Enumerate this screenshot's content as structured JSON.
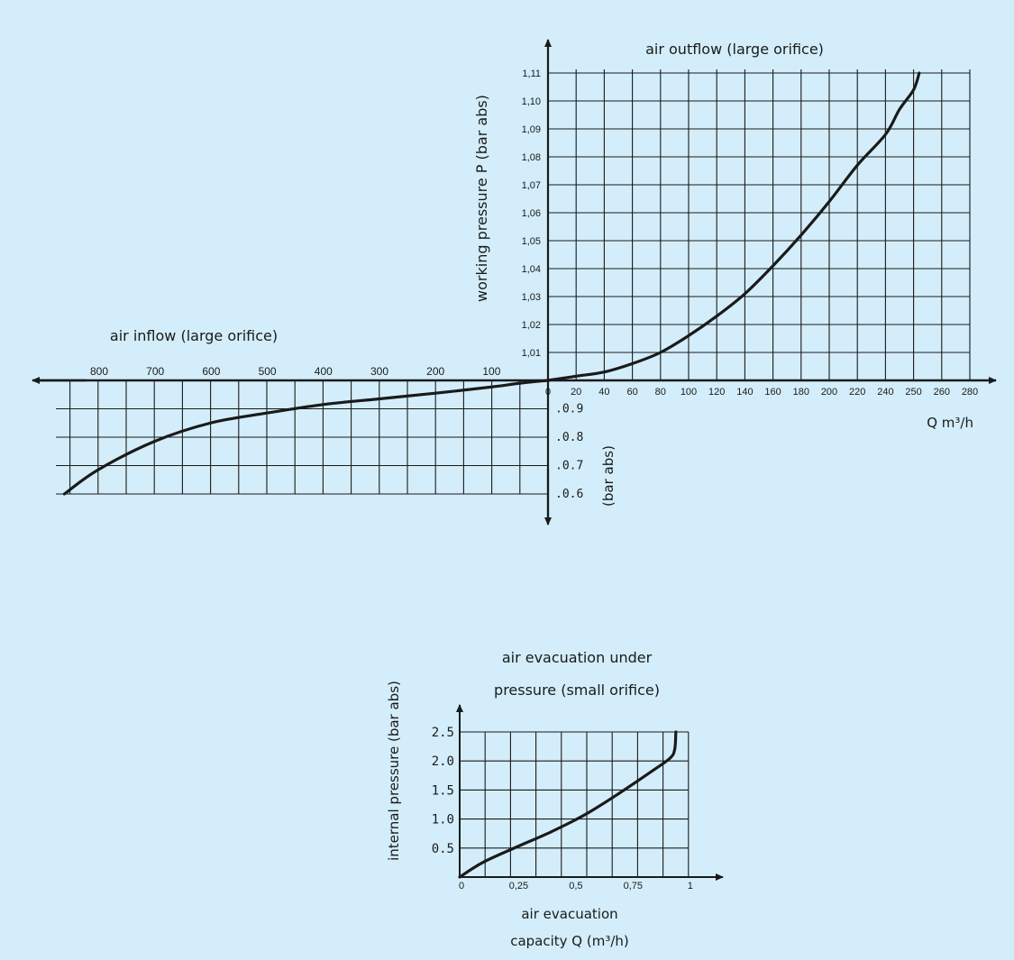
{
  "chart_data": [
    {
      "type": "line",
      "title": "air outflow (large orifice)",
      "ylabel": "working pressure P (bar abs)",
      "xlabel": "Q m³/h",
      "x_ticks": [
        "0",
        "20",
        "40",
        "60",
        "80",
        "100",
        "120",
        "140",
        "160",
        "180",
        "200",
        "220",
        "240",
        "250",
        "260",
        "280"
      ],
      "y_ticks": [
        "1,01",
        "1,02",
        "1,03",
        "1,04",
        "1,05",
        "1,06",
        "1,07",
        "1,08",
        "1,09",
        "1,10",
        "1,11"
      ],
      "xlim": [
        0,
        280
      ],
      "ylim": [
        1.0,
        1.11
      ],
      "grid": true,
      "series": [
        {
          "x": [
            0,
            20,
            40,
            60,
            80,
            100,
            120,
            140,
            160,
            180,
            200,
            220,
            240,
            250,
            260,
            264
          ],
          "y": [
            1.0,
            1.0015,
            1.003,
            1.006,
            1.01,
            1.016,
            1.023,
            1.031,
            1.041,
            1.052,
            1.064,
            1.077,
            1.088,
            1.097,
            1.104,
            1.11
          ]
        }
      ]
    },
    {
      "type": "line",
      "title": "air inflow (large orifice)",
      "ylabel": "(bar abs)",
      "x_ticks": [
        "800",
        "700",
        "600",
        "500",
        "400",
        "300",
        "200",
        "100"
      ],
      "y_ticks": [
        ".0.9",
        ".0.8",
        ".0.7",
        ".0.6"
      ],
      "xlim": [
        0,
        860
      ],
      "ylim": [
        0.6,
        1.0
      ],
      "grid": true,
      "series": [
        {
          "x": [
            0,
            50,
            100,
            200,
            300,
            400,
            500,
            600,
            700,
            800,
            860
          ],
          "y": [
            1.0,
            0.99,
            0.977,
            0.955,
            0.935,
            0.915,
            0.885,
            0.85,
            0.785,
            0.685,
            0.6
          ]
        }
      ]
    },
    {
      "type": "line",
      "title": "air evacuation under pressure (small orifice)",
      "ylabel": "internal pressure (bar abs)",
      "xlabel": "air evacuation capacity Q (m³/h)",
      "x_ticks": [
        "0",
        "0,25",
        "0,5",
        "0,75",
        "1"
      ],
      "y_ticks": [
        "0.5",
        "1.0",
        "1.5",
        "2.0",
        "2.5"
      ],
      "xlim": [
        0,
        1
      ],
      "ylim": [
        0,
        2.5
      ],
      "grid": true,
      "series": [
        {
          "x": [
            0,
            0.1,
            0.25,
            0.4,
            0.55,
            0.7,
            0.85,
            0.92,
            0.94,
            0.945
          ],
          "y": [
            0,
            0.25,
            0.52,
            0.78,
            1.08,
            1.45,
            1.85,
            2.05,
            2.2,
            2.5
          ]
        }
      ]
    }
  ]
}
